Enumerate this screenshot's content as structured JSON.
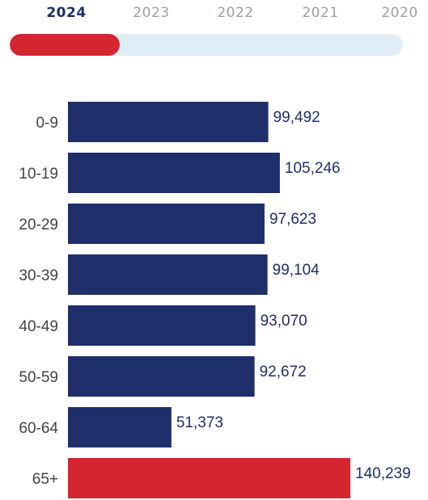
{
  "year_tabs": {
    "items": [
      {
        "label": "2024",
        "active": true
      },
      {
        "label": "2023",
        "active": false
      },
      {
        "label": "2022",
        "active": false
      },
      {
        "label": "2021",
        "active": false
      },
      {
        "label": "2020",
        "active": false
      }
    ],
    "slider_progress": 0.28
  },
  "colors": {
    "bar": "#1f2f6b",
    "highlight": "#d42630",
    "track": "#dfeef6",
    "value_text": "#1f2f6b",
    "label_text": "#444444"
  },
  "chart_data": {
    "type": "bar",
    "orientation": "horizontal",
    "categories": [
      "0-9",
      "10-19",
      "20-29",
      "30-39",
      "40-49",
      "50-59",
      "60-64",
      "65+"
    ],
    "values": [
      99492,
      105246,
      97623,
      99104,
      93070,
      92672,
      51373,
      140239
    ],
    "value_labels": [
      "99,492",
      "105,246",
      "97,623",
      "99,104",
      "93,070",
      "92,672",
      "51,373",
      "140,239"
    ],
    "highlight_categories": [
      "65+"
    ],
    "xlim": [
      0,
      140239
    ],
    "grid": false,
    "legend": "none"
  }
}
